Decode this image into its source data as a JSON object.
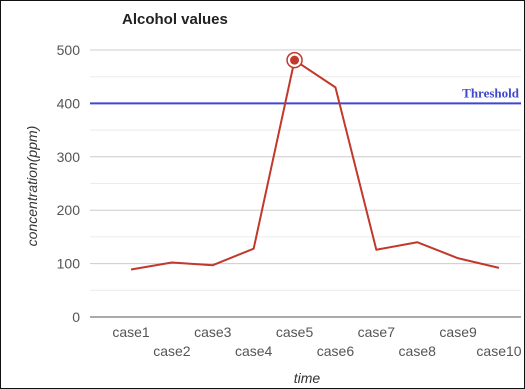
{
  "chart_data": {
    "type": "line",
    "title": "Alcohol values",
    "xlabel": "time",
    "ylabel": "concentration(ppm)",
    "categories": [
      "case1",
      "case2",
      "case3",
      "case4",
      "case5",
      "case6",
      "case7",
      "case8",
      "case9",
      "case10"
    ],
    "series": [
      {
        "values": [
          89,
          102,
          97,
          128,
          481,
          430,
          126,
          140,
          110,
          92
        ],
        "color": "#c0392b"
      }
    ],
    "highlighted_point": {
      "category": "case5",
      "value": 481
    },
    "threshold": {
      "label": "Threshold",
      "value": 400,
      "color": "#3f48cc"
    },
    "ylim": [
      0,
      500
    ],
    "yticks": [
      0,
      100,
      200,
      300,
      400,
      500
    ],
    "grid": true,
    "legend": "none"
  }
}
